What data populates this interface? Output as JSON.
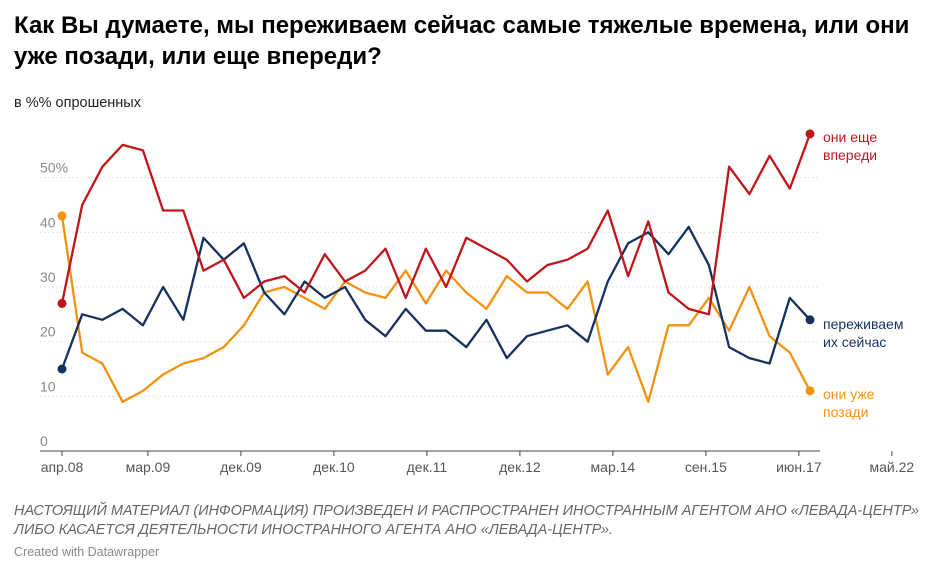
{
  "title": "Как Вы думаете, мы переживаем сейчас самые тяжелые времена, или они уже позади, или еще впереди?",
  "subtitle": "в %% опрошенных",
  "notes": "НАСТОЯЩИЙ МАТЕРИАЛ (ИНФОРМАЦИЯ) ПРОИЗВЕДЕН И РАСПРОСТРАНЕН ИНОСТРАННЫМ АГЕНТОМ АНО «ЛЕВАДА-ЦЕНТР» ЛИБО КАСАЕТСЯ ДЕЯТЕЛЬНОСТИ ИНОСТРАННОГО АГЕНТА АНО «ЛЕВАДА-ЦЕНТР».",
  "byline": "Created with Datawrapper",
  "colors": {
    "ahead": "#c0151b",
    "now": "#15325f",
    "past": "#f3920e",
    "grid": "#e3e3e3",
    "axis": "#555555"
  },
  "chart_data": {
    "type": "line",
    "y_ticks": [
      "0",
      "10",
      "20",
      "30",
      "40",
      "50%"
    ],
    "y_tick_values": [
      0,
      10,
      20,
      30,
      40,
      50
    ],
    "ylim": [
      0,
      60
    ],
    "x_ticks": [
      "апр.08",
      "мар.09",
      "дек.09",
      "дек.10",
      "дек.11",
      "дек.12",
      "мар.14",
      "сен.15",
      "июн.17",
      "май.22"
    ],
    "x_tick_index": [
      0,
      4.25,
      8.85,
      13.45,
      18.05,
      22.65,
      27.25,
      31.85,
      36.45,
      41.05
    ],
    "grid": true,
    "series": [
      {
        "key": "ahead",
        "name": "они еще впереди",
        "label_lines": [
          "они еще",
          "впереди"
        ],
        "values": [
          27,
          45,
          52,
          56,
          55,
          44,
          44,
          33,
          35,
          28,
          31,
          32,
          29,
          36,
          31,
          33,
          37,
          28,
          37,
          30,
          39,
          37,
          35,
          31,
          34,
          35,
          37,
          44,
          32,
          42,
          29,
          26,
          25,
          52,
          47,
          54,
          48,
          58
        ]
      },
      {
        "key": "now",
        "name": "переживаем их сейчас",
        "label_lines": [
          "переживаем",
          "их сейчас"
        ],
        "values": [
          15,
          25,
          24,
          26,
          23,
          30,
          24,
          39,
          35,
          38,
          29,
          25,
          31,
          28,
          30,
          24,
          21,
          26,
          22,
          22,
          19,
          24,
          17,
          21,
          22,
          23,
          20,
          31,
          38,
          40,
          36,
          41,
          34,
          19,
          17,
          16,
          28,
          24
        ]
      },
      {
        "key": "past",
        "name": "они уже позади",
        "label_lines": [
          "они уже",
          "позади"
        ],
        "values": [
          43,
          18,
          16,
          9,
          11,
          14,
          16,
          17,
          19,
          23,
          29,
          30,
          28,
          26,
          31,
          29,
          28,
          33,
          27,
          33,
          29,
          26,
          32,
          29,
          29,
          26,
          31,
          14,
          19,
          9,
          23,
          23,
          28,
          22,
          30,
          21,
          18,
          11
        ]
      }
    ]
  }
}
